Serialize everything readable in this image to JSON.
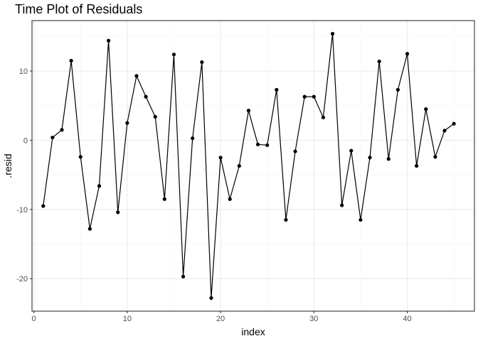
{
  "chart_data": {
    "type": "line",
    "title": "Time Plot of Residuals",
    "xlabel": "index",
    "ylabel": ".resid",
    "xlim": [
      -0.2,
      47.2
    ],
    "ylim": [
      -24.7,
      17.3
    ],
    "x_ticks": [
      0,
      10,
      20,
      30,
      40
    ],
    "y_ticks": [
      -20,
      -10,
      0,
      10
    ],
    "x_tick_labels": [
      "0",
      "10",
      "20",
      "30",
      "40"
    ],
    "y_tick_labels": [
      "-20",
      "-10",
      "0",
      "10"
    ],
    "grid": true,
    "legend": "none",
    "series": [
      {
        "x": [
          1,
          2,
          3,
          4,
          5,
          6,
          7,
          8,
          9,
          10,
          11,
          12,
          13,
          14,
          15,
          16,
          17,
          18,
          19,
          20,
          21,
          22,
          23,
          24,
          25,
          26,
          27,
          28,
          29,
          30,
          31,
          32,
          33,
          34,
          35,
          36,
          37,
          38,
          39,
          40,
          41,
          42,
          43,
          44,
          45
        ],
        "values": [
          -9.5,
          0.4,
          1.5,
          11.5,
          -2.4,
          -12.8,
          -6.6,
          14.4,
          -10.4,
          2.5,
          9.3,
          6.3,
          3.4,
          -8.5,
          12.4,
          -19.7,
          0.3,
          11.3,
          -22.8,
          -2.5,
          -8.5,
          -3.7,
          4.3,
          -0.6,
          -0.7,
          7.3,
          -11.5,
          -1.6,
          6.3,
          6.3,
          3.3,
          15.4,
          -9.4,
          -1.5,
          -11.5,
          -2.5,
          11.4,
          -2.7,
          7.3,
          12.5,
          -3.7,
          4.5,
          -2.4,
          1.4,
          2.4
        ]
      }
    ],
    "colors": {
      "panel_border": "#333333",
      "grid_major": "#ebebeb",
      "grid_minor": "#f5f5f5",
      "line": "#000000",
      "point": "#000000",
      "tick_label": "#4d4d4d"
    }
  }
}
